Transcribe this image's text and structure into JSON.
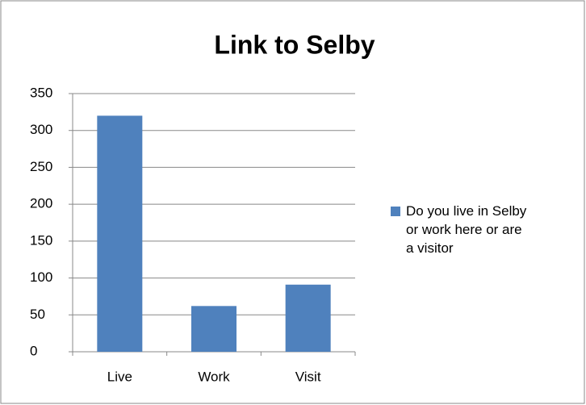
{
  "chart_data": {
    "type": "bar",
    "title": "Link to Selby",
    "categories": [
      "Live",
      "Work",
      "Visit"
    ],
    "series": [
      {
        "name": "Do you live in Selby or work here or are a visitor",
        "color": "#4f81bd",
        "values": [
          320,
          62,
          91
        ]
      }
    ],
    "ylim": [
      0,
      350
    ],
    "yticks": [
      0,
      50,
      100,
      150,
      200,
      250,
      300,
      350
    ],
    "grid": true,
    "legend": "right"
  }
}
